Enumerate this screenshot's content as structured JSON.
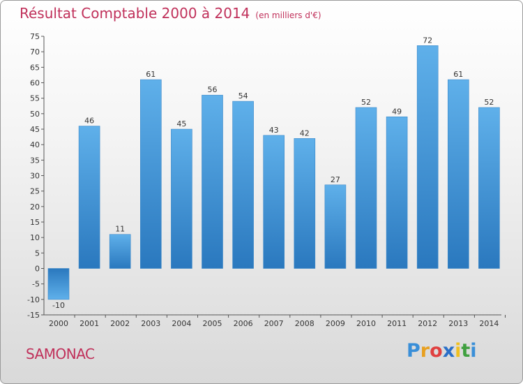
{
  "header": {
    "title": "Résultat Comptable 2000 à 2014",
    "subtitle": "(en milliers d'€)"
  },
  "footer": {
    "place": "SAMONAC",
    "logo_letters": [
      "P",
      "r",
      "o",
      "x",
      "i",
      "t",
      "i"
    ],
    "logo_colors": [
      "#3a8fd8",
      "#e8a020",
      "#e04040",
      "#2a6fc8",
      "#f0c020",
      "#40a040",
      "#3a8fd8"
    ]
  },
  "colors": {
    "bar_light": "#5fb0ea",
    "bar_dark": "#2a78be",
    "title": "#c0305a"
  },
  "chart_data": {
    "type": "bar",
    "title": "Résultat Comptable 2000 à 2014",
    "xlabel": "",
    "ylabel": "",
    "ylim": [
      -15,
      75
    ],
    "ytick_step": 5,
    "grid": false,
    "categories": [
      "2000",
      "2001",
      "2002",
      "2003",
      "2004",
      "2005",
      "2006",
      "2007",
      "2008",
      "2009",
      "2010",
      "2011",
      "2012",
      "2013",
      "2014"
    ],
    "values": [
      -10,
      46,
      11,
      61,
      45,
      56,
      54,
      43,
      42,
      27,
      52,
      49,
      72,
      61,
      52
    ]
  }
}
